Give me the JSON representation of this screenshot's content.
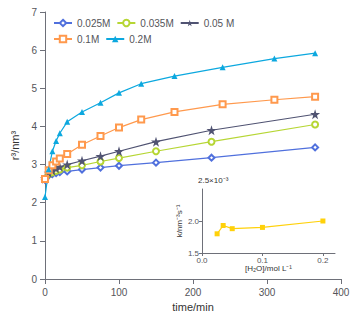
{
  "chart_data": [
    {
      "type": "line",
      "xlabel": "time/min",
      "ylabel": "r³/nm³",
      "xlim": [
        0,
        400
      ],
      "ylim": [
        0,
        7
      ],
      "xticks": [
        0,
        100,
        200,
        300,
        400
      ],
      "yticks": [
        0,
        1,
        2,
        3,
        4,
        5,
        6,
        7
      ],
      "grid": false,
      "legend": "upper left",
      "series": [
        {
          "name": "0.025M",
          "marker": "open-diamond",
          "x": [
            0,
            5,
            10,
            15,
            20,
            30,
            50,
            75,
            100,
            150,
            225,
            365
          ],
          "values": [
            2.6,
            2.72,
            2.75,
            2.78,
            2.8,
            2.82,
            2.87,
            2.92,
            2.97,
            3.05,
            3.18,
            3.45
          ]
        },
        {
          "name": "0.035M",
          "marker": "open-circle",
          "x": [
            0,
            5,
            10,
            15,
            20,
            30,
            50,
            75,
            100,
            150,
            225,
            365
          ],
          "values": [
            2.62,
            2.75,
            2.8,
            2.84,
            2.87,
            2.92,
            2.98,
            3.08,
            3.17,
            3.35,
            3.6,
            4.05
          ]
        },
        {
          "name": "0.05 M",
          "marker": "star",
          "x": [
            0,
            5,
            10,
            15,
            20,
            30,
            50,
            75,
            100,
            150,
            225,
            365
          ],
          "values": [
            2.63,
            2.78,
            2.84,
            2.9,
            2.94,
            3.0,
            3.1,
            3.22,
            3.35,
            3.6,
            3.9,
            4.32
          ]
        },
        {
          "name": "0.1M",
          "marker": "open-square",
          "x": [
            0,
            5,
            10,
            15,
            20,
            30,
            50,
            75,
            100,
            130,
            175,
            240,
            310,
            365
          ],
          "values": [
            2.62,
            2.85,
            2.98,
            3.08,
            3.16,
            3.28,
            3.52,
            3.75,
            3.97,
            4.18,
            4.38,
            4.58,
            4.7,
            4.78
          ]
        },
        {
          "name": "0.2M",
          "marker": "triangle",
          "x": [
            0,
            5,
            10,
            15,
            20,
            30,
            50,
            75,
            100,
            130,
            175,
            240,
            310,
            365
          ],
          "values": [
            2.15,
            2.88,
            3.35,
            3.62,
            3.82,
            4.12,
            4.38,
            4.62,
            4.88,
            5.12,
            5.32,
            5.55,
            5.78,
            5.92
          ]
        }
      ]
    },
    {
      "type": "line",
      "xlabel": "[H₂O]/mol L⁻¹",
      "ylabel": "k/nm⁻³s⁻¹",
      "annotations": [
        "2.5×10⁻³"
      ],
      "marker": "square",
      "grid": false,
      "x": [
        0.025,
        0.035,
        0.05,
        0.1,
        0.2
      ],
      "values": [
        0.0018,
        0.00193,
        0.00188,
        0.0019,
        0.002
      ],
      "xlim": [
        0.0,
        0.22
      ],
      "ylim": [
        0.0015,
        0.0025
      ],
      "xticks": [
        {
          "value": 0.0,
          "label": "0.0"
        },
        {
          "value": 0.1,
          "label": "0.1"
        },
        {
          "value": 0.2,
          "label": "0.2"
        }
      ],
      "yticks": [
        {
          "value": 0.0015,
          "label": "1.5"
        },
        {
          "value": 0.002,
          "label": "2.0"
        }
      ]
    }
  ]
}
